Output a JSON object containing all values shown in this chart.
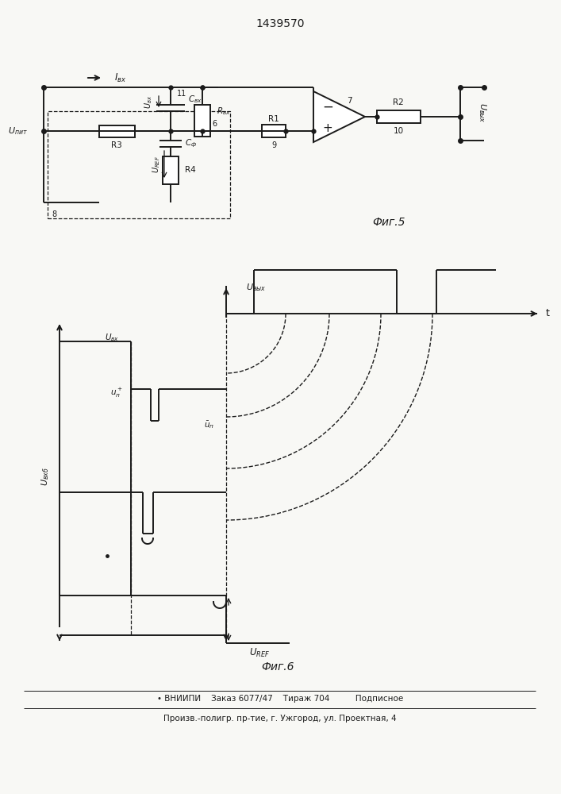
{
  "title": "1439570",
  "footer_line1": "• ВНИИПИ    Заказ 6077/47    Тираж 704          Подписное",
  "footer_line2": "Произв.-полигр. пр-тие, г. Ужгород, ул. Проектная, 4",
  "bg_color": "#f8f8f5",
  "line_color": "#1a1a1a"
}
